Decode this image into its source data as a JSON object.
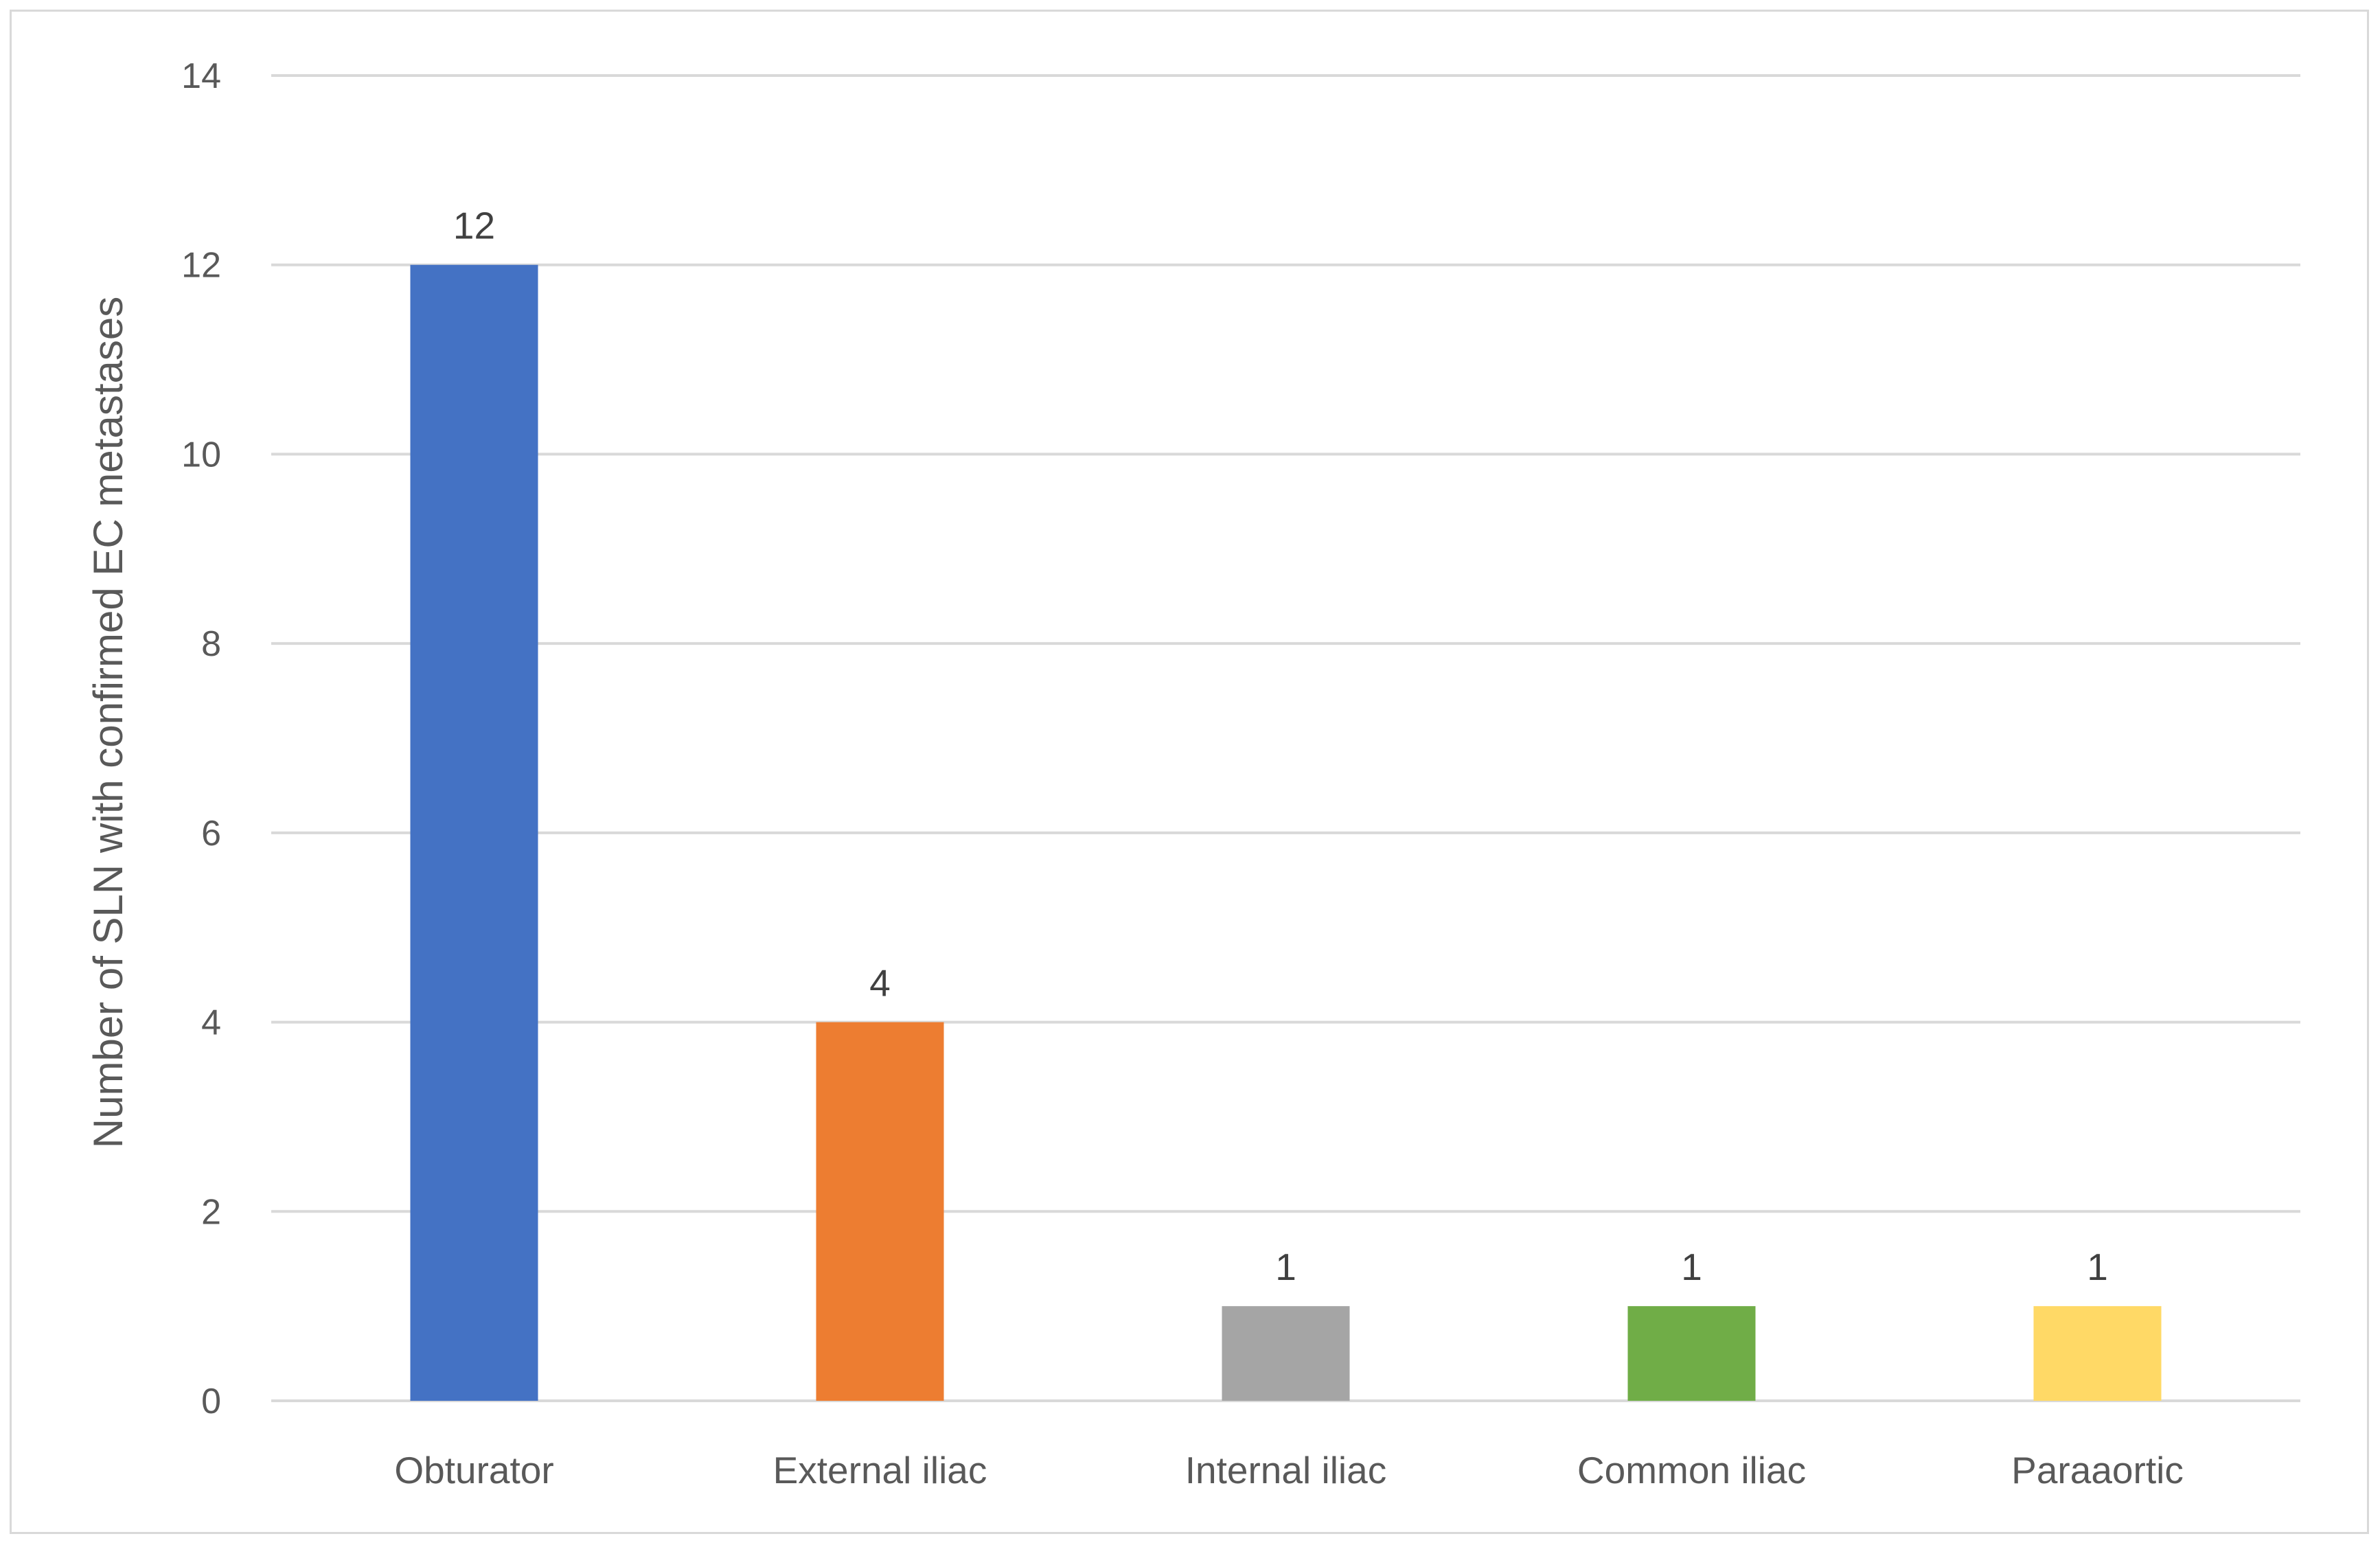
{
  "chart_data": {
    "type": "bar",
    "title": "",
    "xlabel": "",
    "ylabel": "Number of SLN with confirmed EC metastases",
    "categories": [
      "Obturator",
      "External iliac",
      "Internal iliac",
      "Common iliac",
      "Paraaortic"
    ],
    "values": [
      12,
      4,
      1,
      1,
      1
    ],
    "colors": [
      "#4472c4",
      "#ed7d31",
      "#a5a5a5",
      "#70ad47",
      "#ffd966"
    ],
    "ylim": [
      0,
      14
    ],
    "yticks": [
      0,
      2,
      4,
      6,
      8,
      10,
      12,
      14
    ],
    "grid": true,
    "legend": "none",
    "data_labels": true
  }
}
